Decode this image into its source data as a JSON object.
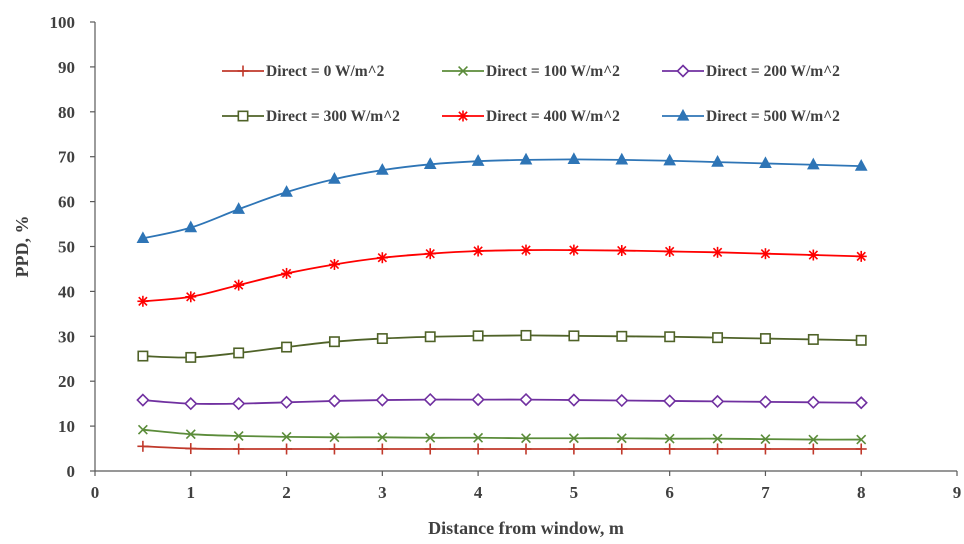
{
  "chart_data": {
    "type": "line",
    "title": "",
    "xlabel": "Distance from window, m",
    "ylabel": "PPD, %",
    "xlim": [
      0,
      9
    ],
    "ylim": [
      0,
      100
    ],
    "xticks": [
      "0",
      "1",
      "2",
      "3",
      "4",
      "5",
      "6",
      "7",
      "8",
      "9"
    ],
    "yticks": [
      "0",
      "10",
      "20",
      "30",
      "40",
      "50",
      "60",
      "70",
      "80",
      "90",
      "100"
    ],
    "grid": false,
    "legend_position": "top-right",
    "x": [
      0.5,
      1,
      1.5,
      2,
      2.5,
      3,
      3.5,
      4,
      4.5,
      5,
      5.5,
      6,
      6.5,
      7,
      7.5,
      8
    ],
    "series": [
      {
        "name": "Direct = 0 W/m^2",
        "color": "#c0392b",
        "marker": "plus",
        "values": [
          5.5,
          5.0,
          4.9,
          4.9,
          4.9,
          4.9,
          4.9,
          4.9,
          4.9,
          4.9,
          4.9,
          4.9,
          4.9,
          4.9,
          4.9,
          4.9
        ]
      },
      {
        "name": "Direct = 100 W/m^2",
        "color": "#5b8c3a",
        "marker": "x",
        "values": [
          9.2,
          8.2,
          7.8,
          7.6,
          7.5,
          7.5,
          7.4,
          7.4,
          7.3,
          7.3,
          7.3,
          7.2,
          7.2,
          7.1,
          7.0,
          7.0
        ]
      },
      {
        "name": "Direct = 200 W/m^2",
        "color": "#7030a0",
        "marker": "diamond",
        "values": [
          15.8,
          15.0,
          15.0,
          15.3,
          15.6,
          15.8,
          15.9,
          15.9,
          15.9,
          15.8,
          15.7,
          15.6,
          15.5,
          15.4,
          15.3,
          15.2
        ]
      },
      {
        "name": "Direct = 300 W/m^2",
        "color": "#4f6228",
        "marker": "square",
        "values": [
          25.6,
          25.3,
          26.3,
          27.6,
          28.8,
          29.5,
          29.9,
          30.1,
          30.2,
          30.1,
          30.0,
          29.9,
          29.7,
          29.5,
          29.3,
          29.1
        ]
      },
      {
        "name": "Direct = 400 W/m^2",
        "color": "#ff0000",
        "marker": "asterisk",
        "values": [
          37.8,
          38.8,
          41.4,
          44.0,
          46.0,
          47.5,
          48.4,
          49.0,
          49.2,
          49.2,
          49.1,
          48.9,
          48.7,
          48.4,
          48.1,
          47.8
        ]
      },
      {
        "name": "Direct = 500 W/m^2",
        "color": "#2e75b6",
        "marker": "triangle",
        "values": [
          51.8,
          54.2,
          58.3,
          62.1,
          65.0,
          67.0,
          68.3,
          69.0,
          69.3,
          69.4,
          69.3,
          69.1,
          68.8,
          68.5,
          68.2,
          67.9
        ]
      }
    ]
  }
}
